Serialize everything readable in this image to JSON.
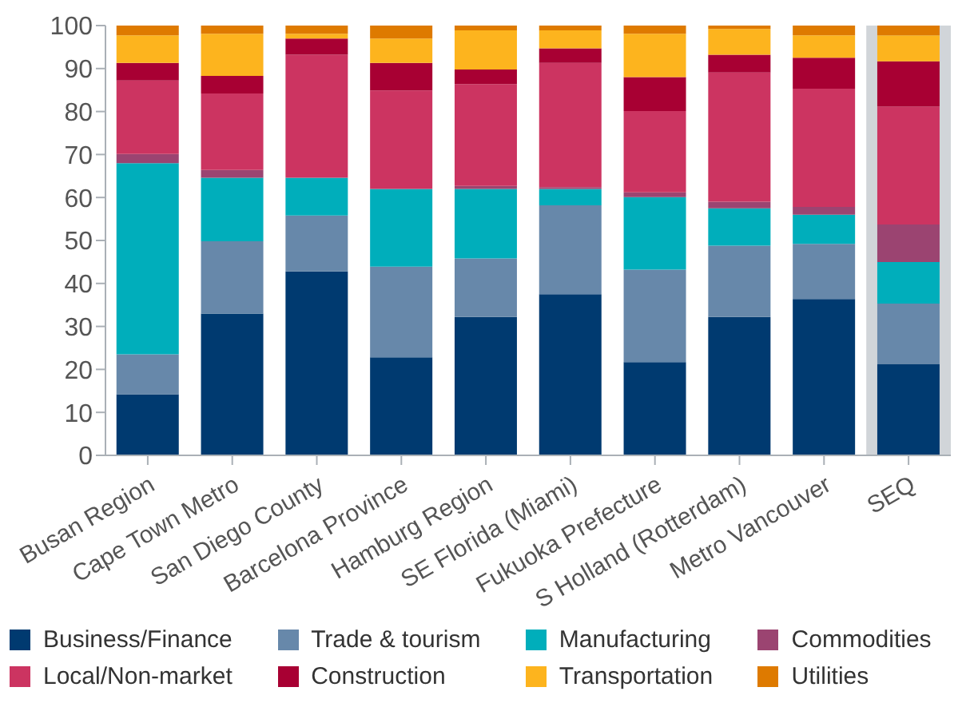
{
  "chart_data": {
    "type": "bar",
    "stacked": true,
    "categories": [
      "Busan Region",
      "Cape Town Metro",
      "San Diego County",
      "Barcelona Province",
      "Hamburg Region",
      "SE Florida (Miami)",
      "Fukuoka Prefecture",
      "S Holland (Rotterdam)",
      "Metro Vancouver",
      "SEQ"
    ],
    "series": [
      {
        "name": "Business/Finance",
        "color": "#003a70",
        "values": [
          14.2,
          33,
          42.8,
          22.8,
          32.2,
          37.5,
          21.7,
          32.2,
          36.4,
          21.3
        ]
      },
      {
        "name": "Trade & tourism",
        "color": "#6788aa",
        "values": [
          9.3,
          16.8,
          13,
          21.1,
          13.6,
          20.7,
          21.5,
          16.6,
          12.8,
          14
        ]
      },
      {
        "name": "Manufacturing",
        "color": "#00aebb",
        "values": [
          44.5,
          14.8,
          8.8,
          18.1,
          16.2,
          3.8,
          16.9,
          8.7,
          6.8,
          9.7
        ]
      },
      {
        "name": "Commodities",
        "color": "#9b4471",
        "values": [
          2.1,
          1.8,
          0,
          0,
          0.7,
          0.4,
          1.1,
          1.5,
          1.8,
          8.7
        ]
      },
      {
        "name": "Local/Non-market",
        "color": "#cc3461",
        "values": [
          17.1,
          17.8,
          28.6,
          22.9,
          23.7,
          28.9,
          18.9,
          30.1,
          27.5,
          27.5
        ]
      },
      {
        "name": "Construction",
        "color": "#a80033",
        "values": [
          4.1,
          4.1,
          3.8,
          6.4,
          3.4,
          3.4,
          7.9,
          4.1,
          7.2,
          10.5
        ]
      },
      {
        "name": "Transportation",
        "color": "#fdb41e",
        "values": [
          6.4,
          9.8,
          1.1,
          5.7,
          9.1,
          4.2,
          10.1,
          6,
          5.2,
          6
        ]
      },
      {
        "name": "Utilities",
        "color": "#de7a00",
        "values": [
          2.3,
          1.9,
          1.9,
          3,
          1.1,
          1.1,
          1.9,
          0.8,
          2.3,
          2.3
        ]
      }
    ],
    "ylim": [
      0,
      100
    ],
    "yticks": [
      0,
      10,
      20,
      30,
      40,
      50,
      60,
      70,
      80,
      90,
      100
    ],
    "grid": false,
    "legend": "bottom",
    "bands": [
      {
        "axis": "x",
        "from": "SEQ",
        "to": "SEQ",
        "color": "#d1d5d9"
      }
    ]
  }
}
